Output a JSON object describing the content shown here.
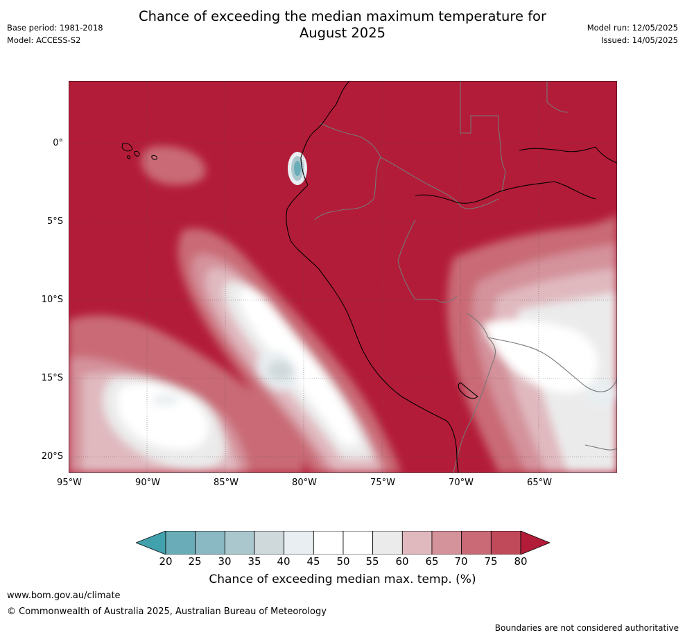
{
  "header": {
    "title_line1": "Chance of exceeding the median maximum temperature for",
    "title_line2": "August 2025",
    "base_period": "Base period: 1981-2018",
    "model": "Model: ACCESS-S2",
    "model_run": "Model run: 12/05/2025",
    "issued": "Issued: 14/05/2025"
  },
  "map": {
    "lat_ticks": [
      "0°",
      "5°S",
      "10°S",
      "15°S",
      "20°S"
    ],
    "lon_ticks": [
      "95°W",
      "90°W",
      "85°W",
      "80°W",
      "75°W",
      "70°W",
      "65°W"
    ],
    "extent": {
      "lon_min": -95,
      "lon_max": -60,
      "lat_min": -21,
      "lat_max": 4
    },
    "dominant_category": "80+",
    "colors": {
      "lt20": "#41a1ac",
      "c20_25": "#6aacb8",
      "c25_30": "#8ab8c3",
      "c30_35": "#aac7cd",
      "c35_40": "#cfd8da",
      "c40_45": "#e8eef1",
      "c45_50": "#ffffff",
      "c50_55": "#ffffff",
      "c55_60": "#ebebeb",
      "c60_65": "#e0b9bf",
      "c65_70": "#d4929b",
      "c70_75": "#c96a76",
      "c75_80": "#c0495a",
      "gt80": "#b31c38"
    }
  },
  "colorbar": {
    "ticks": [
      "20",
      "25",
      "30",
      "35",
      "40",
      "45",
      "50",
      "55",
      "60",
      "65",
      "70",
      "75",
      "80"
    ],
    "colors": [
      "#6aacb8",
      "#8ab8c3",
      "#aac7cd",
      "#cfd8da",
      "#e8eef1",
      "#ffffff",
      "#ffffff",
      "#ebebeb",
      "#e0b9bf",
      "#d4929b",
      "#c96a76",
      "#c0495a"
    ],
    "under_color": "#41a1ac",
    "over_color": "#b31c38",
    "label": "Chance of exceeding median max. temp. (%)"
  },
  "footer": {
    "website": "www.bom.gov.au/climate",
    "copyright": "© Commonwealth of Australia 2025, Australian Bureau of Meteorology",
    "disclaimer": "Boundaries are not considered authoritative"
  }
}
